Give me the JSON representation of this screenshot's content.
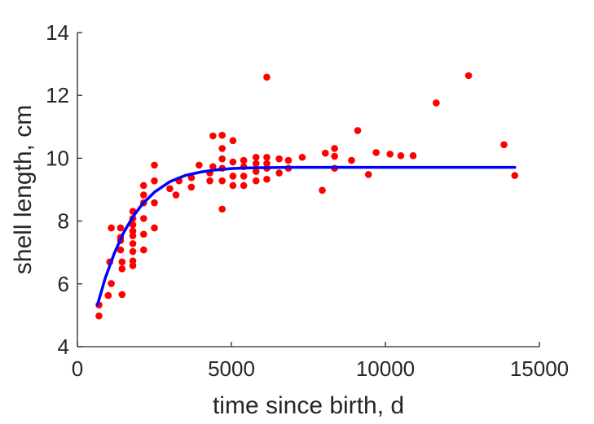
{
  "chart_data": {
    "type": "scatter",
    "title": "",
    "xlabel": "time since birth, d",
    "ylabel": "shell length, cm",
    "xlim": [
      0,
      15000
    ],
    "ylim": [
      4,
      14
    ],
    "xticks": [
      0,
      5000,
      10000,
      15000
    ],
    "xtick_labels": [
      "0",
      "5000",
      "10000",
      "15000"
    ],
    "yticks": [
      4,
      6,
      8,
      10,
      12,
      14
    ],
    "ytick_labels": [
      "4",
      "6",
      "8",
      "10",
      "12",
      "14"
    ],
    "grid": false,
    "legend": "none",
    "colors": {
      "points": "#ff0000",
      "fit": "#0000ff",
      "axis": "#262626"
    },
    "series": [
      {
        "kind": "points",
        "points": [
          [
            700,
            4.98
          ],
          [
            700,
            5.33
          ],
          [
            1000,
            5.63
          ],
          [
            1050,
            6.7
          ],
          [
            1100,
            7.78
          ],
          [
            1100,
            6.01
          ],
          [
            1400,
            7.78
          ],
          [
            1400,
            7.48
          ],
          [
            1400,
            7.38
          ],
          [
            1400,
            7.08
          ],
          [
            1450,
            6.7
          ],
          [
            1450,
            6.48
          ],
          [
            1450,
            5.66
          ],
          [
            1800,
            8.31
          ],
          [
            1800,
            8.08
          ],
          [
            1800,
            7.88
          ],
          [
            1800,
            7.68
          ],
          [
            1800,
            7.53
          ],
          [
            1800,
            7.28
          ],
          [
            1800,
            7.03
          ],
          [
            1800,
            6.73
          ],
          [
            1800,
            6.58
          ],
          [
            2150,
            9.13
          ],
          [
            2150,
            8.83
          ],
          [
            2150,
            8.58
          ],
          [
            2150,
            8.08
          ],
          [
            2150,
            7.58
          ],
          [
            2150,
            7.08
          ],
          [
            2500,
            9.78
          ],
          [
            2500,
            9.28
          ],
          [
            2500,
            8.58
          ],
          [
            2500,
            7.78
          ],
          [
            3000,
            9.03
          ],
          [
            3200,
            8.83
          ],
          [
            3300,
            9.28
          ],
          [
            3700,
            9.38
          ],
          [
            3700,
            9.08
          ],
          [
            3950,
            9.78
          ],
          [
            4300,
            9.53
          ],
          [
            4300,
            9.28
          ],
          [
            4400,
            10.71
          ],
          [
            4400,
            9.73
          ],
          [
            4700,
            10.73
          ],
          [
            4700,
            10.31
          ],
          [
            4700,
            9.98
          ],
          [
            4700,
            9.68
          ],
          [
            4700,
            9.28
          ],
          [
            4700,
            8.38
          ],
          [
            5050,
            10.56
          ],
          [
            5050,
            9.88
          ],
          [
            5050,
            9.43
          ],
          [
            5050,
            9.13
          ],
          [
            5400,
            9.93
          ],
          [
            5400,
            9.73
          ],
          [
            5400,
            9.43
          ],
          [
            5400,
            9.13
          ],
          [
            5800,
            10.03
          ],
          [
            5800,
            9.83
          ],
          [
            5800,
            9.58
          ],
          [
            5800,
            9.28
          ],
          [
            6150,
            12.58
          ],
          [
            6150,
            10.03
          ],
          [
            6150,
            9.83
          ],
          [
            6150,
            9.68
          ],
          [
            6150,
            9.33
          ],
          [
            6550,
            9.98
          ],
          [
            6550,
            9.53
          ],
          [
            6850,
            9.93
          ],
          [
            6850,
            9.68
          ],
          [
            7300,
            10.03
          ],
          [
            7950,
            8.98
          ],
          [
            8050,
            10.16
          ],
          [
            8350,
            10.31
          ],
          [
            8350,
            10.06
          ],
          [
            8350,
            9.68
          ],
          [
            8900,
            9.93
          ],
          [
            9100,
            10.88
          ],
          [
            9450,
            9.48
          ],
          [
            9700,
            10.18
          ],
          [
            10150,
            10.13
          ],
          [
            10500,
            10.08
          ],
          [
            10900,
            10.08
          ],
          [
            11650,
            11.76
          ],
          [
            12700,
            12.63
          ],
          [
            13850,
            10.43
          ],
          [
            14200,
            9.45
          ]
        ]
      },
      {
        "kind": "fit-line",
        "points": [
          [
            650,
            5.33
          ],
          [
            900,
            6.17
          ],
          [
            1200,
            6.98
          ],
          [
            1500,
            7.63
          ],
          [
            1800,
            8.13
          ],
          [
            2100,
            8.53
          ],
          [
            2500,
            8.92
          ],
          [
            3000,
            9.25
          ],
          [
            3500,
            9.45
          ],
          [
            4000,
            9.56
          ],
          [
            4500,
            9.63
          ],
          [
            5000,
            9.67
          ],
          [
            5500,
            9.69
          ],
          [
            6000,
            9.7
          ],
          [
            7000,
            9.71
          ],
          [
            8000,
            9.71
          ],
          [
            10000,
            9.71
          ],
          [
            12000,
            9.71
          ],
          [
            14200,
            9.71
          ]
        ]
      }
    ]
  }
}
